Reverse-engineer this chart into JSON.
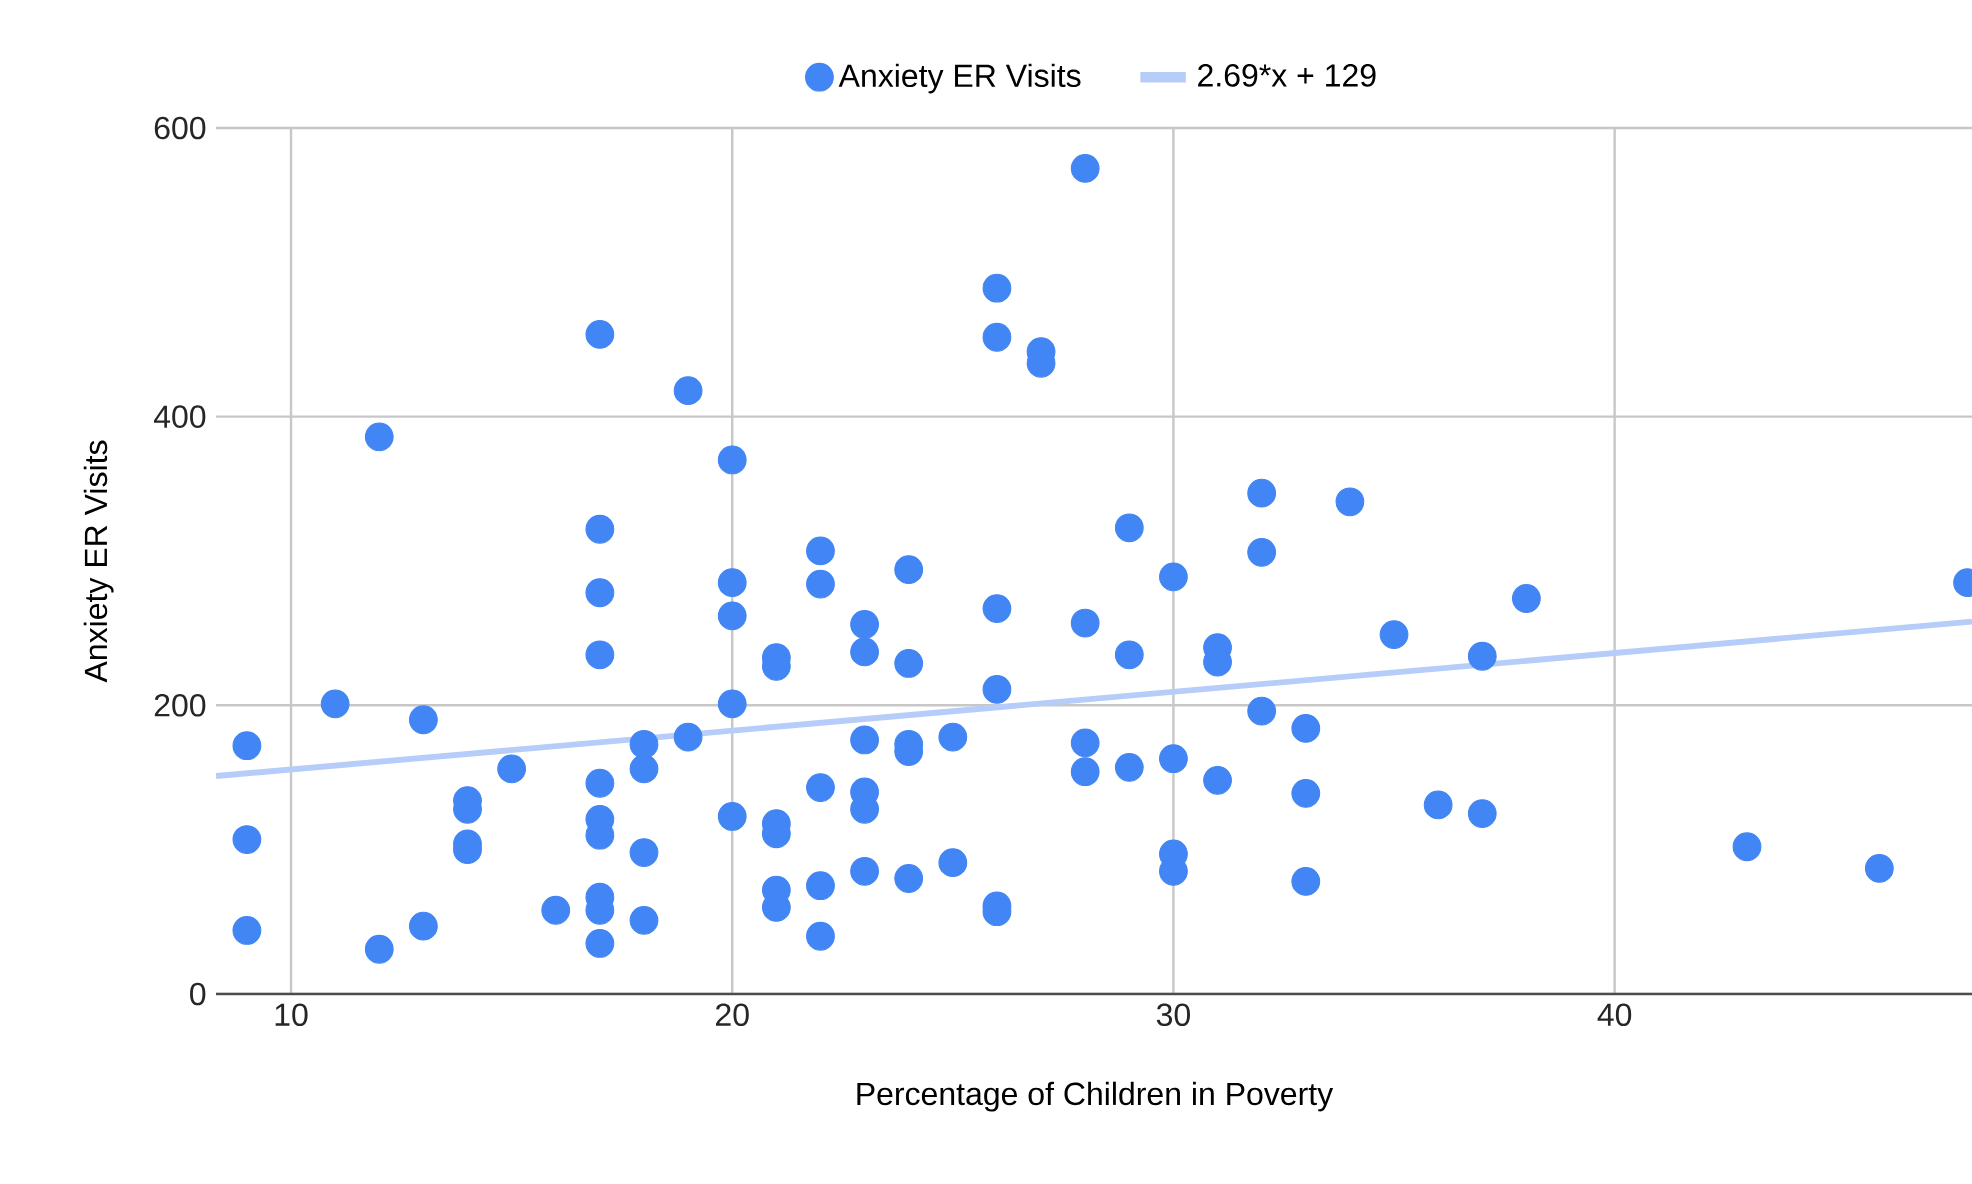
{
  "chart_data": {
    "type": "scatter",
    "xlabel": "Percentage of Children in Poverty",
    "ylabel": "Anxiety ER Visits",
    "xlim": [
      8.3,
      48.1
    ],
    "ylim": [
      0,
      600
    ],
    "xticks": [
      10,
      20,
      30,
      40
    ],
    "yticks": [
      0,
      200,
      400,
      600
    ],
    "grid": true,
    "legend": "top",
    "series": [
      {
        "name": "Anxiety ER Visits",
        "color": "#4285f4",
        "marker": "circle",
        "x": [
          9,
          9,
          9,
          11,
          12,
          12,
          13,
          13,
          14,
          14,
          14,
          14,
          15,
          16,
          17,
          17,
          17,
          17,
          17,
          17,
          17,
          17,
          17,
          17,
          18,
          18,
          18,
          18,
          19,
          19,
          20,
          20,
          20,
          20,
          20,
          21,
          21,
          21,
          21,
          21,
          21,
          22,
          22,
          22,
          22,
          22,
          23,
          23,
          23,
          23,
          23,
          23,
          24,
          24,
          24,
          24,
          24,
          25,
          25,
          26,
          26,
          26,
          26,
          26,
          26,
          27,
          27,
          28,
          28,
          28,
          28,
          29,
          29,
          29,
          30,
          30,
          30,
          30,
          31,
          31,
          31,
          32,
          32,
          32,
          33,
          33,
          33,
          34,
          35,
          36,
          37,
          37,
          38,
          43,
          46,
          48
        ],
        "values": [
          172,
          107,
          44,
          201,
          386,
          31,
          190,
          47,
          134,
          128,
          104,
          100,
          156,
          58,
          457,
          322,
          278,
          235,
          146,
          121,
          110,
          67,
          58,
          35,
          173,
          156,
          98,
          51,
          418,
          178,
          370,
          285,
          262,
          201,
          123,
          233,
          227,
          118,
          111,
          72,
          60,
          307,
          284,
          143,
          75,
          40,
          256,
          237,
          176,
          140,
          128,
          85,
          294,
          229,
          173,
          168,
          80,
          178,
          91,
          489,
          455,
          267,
          211,
          61,
          57,
          445,
          437,
          572,
          257,
          174,
          154,
          323,
          235,
          157,
          289,
          163,
          97,
          85,
          240,
          230,
          148,
          347,
          306,
          196,
          184,
          139,
          78,
          341,
          249,
          131,
          234,
          125,
          274,
          102,
          87,
          285
        ]
      },
      {
        "name": "2.69*x + 129",
        "color": "#b7cdf9",
        "type": "line",
        "x": [
          8.3,
          48.1
        ],
        "values": [
          151,
          258
        ]
      }
    ]
  }
}
